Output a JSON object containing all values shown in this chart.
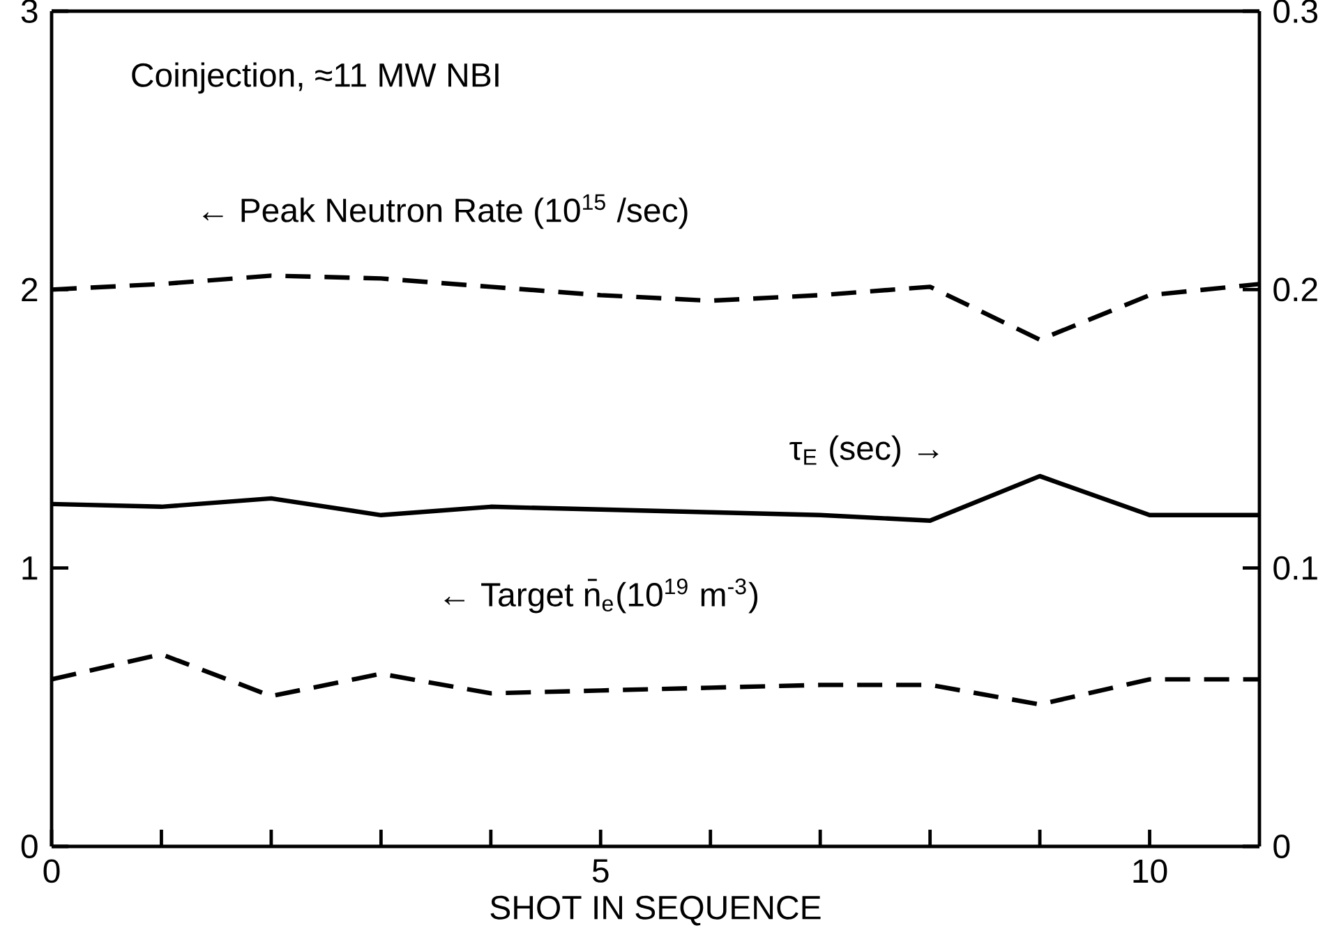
{
  "chart_data": {
    "type": "line",
    "xlabel": "SHOT IN SEQUENCE",
    "annotations": [
      "Coinjection, ≈11 MW NBI"
    ],
    "x": [
      0,
      1,
      2,
      3,
      4,
      5,
      6,
      7,
      8,
      9,
      10,
      11
    ],
    "series": [
      {
        "name": "← Peak Neutron Rate (10$^{15}$ /sec)",
        "color": "#000000",
        "line_style": "dashed",
        "values": [
          2.0,
          2.02,
          2.05,
          2.04,
          2.01,
          1.98,
          1.96,
          1.98,
          2.01,
          1.82,
          1.98,
          2.02
        ]
      },
      {
        "name": "τ$_{E}$ (sec) →",
        "color": "#000000",
        "line_style": "solid",
        "axis": "y2",
        "values": [
          0.123,
          0.122,
          0.125,
          0.119,
          0.122,
          0.121,
          0.12,
          0.119,
          0.117,
          0.133,
          0.119,
          0.119
        ]
      },
      {
        "name": "← Target n̄$_{e}$(10$^{19}$ m$^{-3}$)",
        "color": "#000000",
        "line_style": "dashed",
        "values": [
          0.6,
          0.69,
          0.54,
          0.62,
          0.55,
          0.56,
          0.57,
          0.58,
          0.58,
          0.51,
          0.6,
          0.6
        ]
      }
    ],
    "xlim": [
      0,
      11
    ],
    "xticks": [
      0,
      {
        "value": 1,
        "label": null
      },
      {
        "value": 2,
        "label": null
      },
      {
        "value": 3,
        "label": null
      },
      {
        "value": 4,
        "label": null
      },
      5,
      {
        "value": 6,
        "label": null
      },
      {
        "value": 7,
        "label": null
      },
      {
        "value": 8,
        "label": null
      },
      {
        "value": 9,
        "label": null
      },
      10
    ],
    "ylim": [
      0,
      3
    ],
    "yticks": [
      0,
      1,
      2,
      3
    ],
    "y2lim": [
      0,
      0.3
    ],
    "y2ticks": [
      0,
      0.1,
      0.2,
      0.3
    ],
    "marker": "none",
    "grid": false,
    "legend": false
  }
}
